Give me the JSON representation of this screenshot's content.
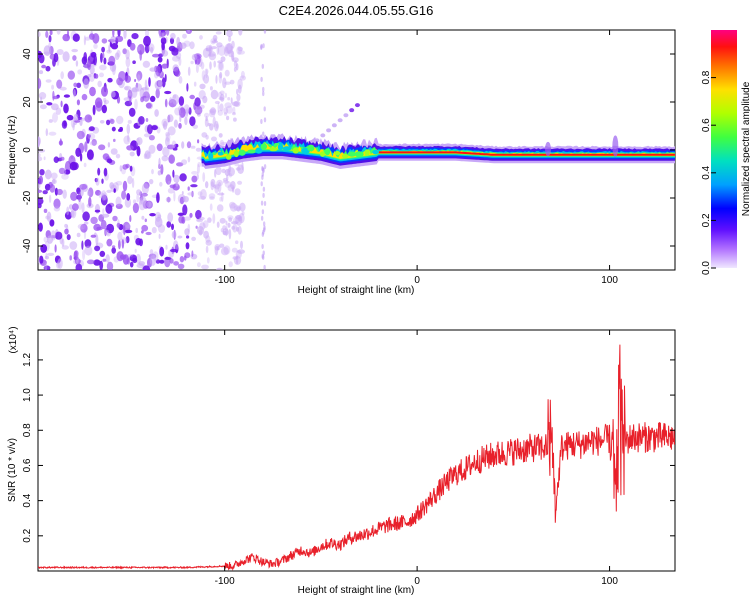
{
  "title": "C2E4.2026.044.05.55.G16",
  "colors": {
    "signal": "#e8202a",
    "noise_purple": "#7a2be0",
    "background": "#ffffff"
  },
  "chart_data": [
    {
      "type": "heatmap",
      "name": "spectrogram",
      "xlabel": "Height of straight line (km)",
      "ylabel": "Frequency (Hz)",
      "xlim": [
        -197,
        134
      ],
      "ylim": [
        -50,
        50
      ],
      "xticks": [
        -100,
        0,
        100
      ],
      "yticks": [
        40,
        20,
        0,
        -20,
        -40
      ],
      "noise_region_x": [
        -197,
        -98
      ],
      "track_points": [
        {
          "x": -110,
          "y": -3
        },
        {
          "x": -100,
          "y": -2
        },
        {
          "x": -90,
          "y": 0
        },
        {
          "x": -80,
          "y": 1
        },
        {
          "x": -70,
          "y": 1
        },
        {
          "x": -60,
          "y": 0
        },
        {
          "x": -50,
          "y": -1
        },
        {
          "x": -40,
          "y": -3
        },
        {
          "x": -30,
          "y": -2
        },
        {
          "x": -20,
          "y": -1
        },
        {
          "x": 0,
          "y": -1
        },
        {
          "x": 20,
          "y": -1
        },
        {
          "x": 40,
          "y": -2
        },
        {
          "x": 60,
          "y": -2
        },
        {
          "x": 80,
          "y": -2
        },
        {
          "x": 100,
          "y": -2
        },
        {
          "x": 134,
          "y": -2
        }
      ],
      "colorbar": {
        "label": "Normalized spectral amplitude",
        "ticks": [
          0.8,
          0.6,
          0.4,
          0.2,
          0.0
        ],
        "tick_labels": [
          "0.8",
          "0.6",
          "0.4",
          "0.2",
          "0.0"
        ],
        "stops": [
          "#e0e0ff",
          "#8000ff",
          "#0000ff",
          "#00c0ff",
          "#00ff80",
          "#80ff00",
          "#ffff00",
          "#ff8000",
          "#ff0000",
          "#ff0080"
        ]
      }
    },
    {
      "type": "line",
      "name": "snr",
      "xlabel": "Height of straight line (km)",
      "ylabel": "SNR (10 * v/v)",
      "exponent_label": "(x10⁴)",
      "xlim": [
        -197,
        134
      ],
      "ylim": [
        0,
        1.37
      ],
      "xticks": [
        -100,
        0,
        100
      ],
      "yticks": [
        0.2,
        0.4,
        0.6,
        0.8,
        1.0,
        1.2
      ],
      "ytick_labels": [
        "0.2",
        "0.4",
        "0.6",
        "0.8",
        "1.0",
        "1.2"
      ],
      "series": [
        {
          "name": "SNR",
          "x": [
            -197,
            -120,
            -95,
            -90,
            -85,
            -80,
            -75,
            -70,
            -65,
            -60,
            -55,
            -50,
            -45,
            -40,
            -35,
            -30,
            -25,
            -20,
            -15,
            -10,
            -5,
            0,
            5,
            10,
            15,
            20,
            25,
            30,
            35,
            40,
            45,
            50,
            55,
            60,
            65,
            70,
            72,
            75,
            80,
            85,
            90,
            95,
            100,
            103,
            105,
            108,
            112,
            120,
            134
          ],
          "values": [
            0.02,
            0.02,
            0.03,
            0.06,
            0.08,
            0.05,
            0.04,
            0.06,
            0.09,
            0.12,
            0.1,
            0.14,
            0.16,
            0.15,
            0.19,
            0.2,
            0.22,
            0.24,
            0.26,
            0.27,
            0.28,
            0.32,
            0.38,
            0.44,
            0.5,
            0.55,
            0.58,
            0.62,
            0.64,
            0.66,
            0.67,
            0.68,
            0.69,
            0.7,
            0.7,
            0.72,
            0.35,
            0.7,
            0.72,
            0.72,
            0.74,
            0.74,
            0.75,
            0.4,
            0.95,
            0.74,
            0.76,
            0.76,
            0.76
          ]
        }
      ]
    }
  ]
}
